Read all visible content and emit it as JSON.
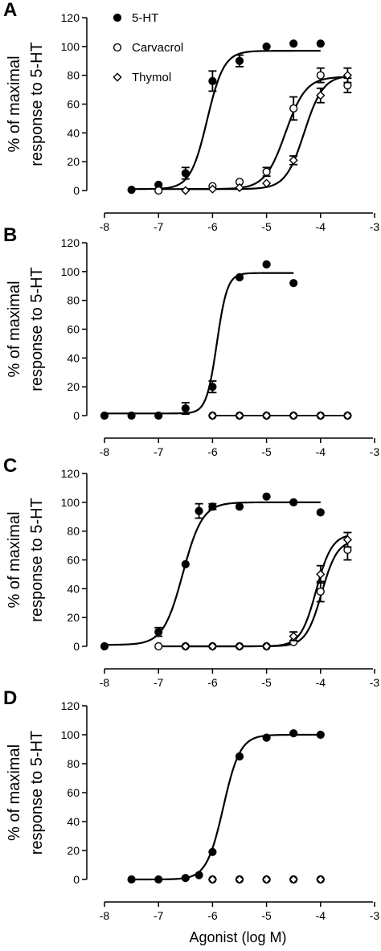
{
  "colors": {
    "ink": "#000000",
    "open_fill": "#ffffff",
    "background": "#ffffff"
  },
  "xlabel": "Agonist (log M)",
  "chart_data": [
    {
      "panel": "A",
      "type": "scatter",
      "ylabel_lines": [
        "% of maximal",
        "response to 5-HT"
      ],
      "xlim": [
        -8,
        -3
      ],
      "ylim": [
        0,
        120
      ],
      "xticks": [
        "-8",
        "-7",
        "-6",
        "-5",
        "-4",
        "-3"
      ],
      "yticks": [
        "0",
        "20",
        "40",
        "60",
        "80",
        "100",
        "120"
      ],
      "legend": {
        "position": "top-left",
        "entries": [
          {
            "label": "5-HT",
            "marker": "filled-circle"
          },
          {
            "label": "Carvacrol",
            "marker": "open-circle"
          },
          {
            "label": "Thymol",
            "marker": "open-diamond"
          }
        ]
      },
      "series": [
        {
          "name": "5-HT",
          "marker": "filled-circle",
          "points": [
            [
              -7.5,
              0.5,
              0
            ],
            [
              -7,
              4,
              0
            ],
            [
              -6.5,
              12,
              4
            ],
            [
              -6,
              76,
              7
            ],
            [
              -5.5,
              90,
              4
            ],
            [
              -5,
              100,
              0
            ],
            [
              -4.5,
              102,
              0
            ],
            [
              -4,
              102,
              0
            ]
          ],
          "fit": {
            "bottom": 1,
            "top": 97,
            "log_ec50": -6.1,
            "hill": 2.8
          }
        },
        {
          "name": "Carvacrol",
          "marker": "open-circle",
          "points": [
            [
              -7,
              0,
              0
            ],
            [
              -6,
              3,
              0
            ],
            [
              -5.5,
              6,
              0
            ],
            [
              -5,
              13,
              3
            ],
            [
              -4.5,
              57,
              8
            ],
            [
              -4,
              80,
              5
            ],
            [
              -3.5,
              73,
              5
            ]
          ],
          "fit": {
            "bottom": 1,
            "top": 79,
            "log_ec50": -4.65,
            "hill": 2.3
          }
        },
        {
          "name": "Thymol",
          "marker": "open-diamond",
          "points": [
            [
              -6.5,
              0,
              0
            ],
            [
              -6,
              1,
              0
            ],
            [
              -5.5,
              2,
              0
            ],
            [
              -5,
              5,
              0
            ],
            [
              -4.5,
              21,
              3
            ],
            [
              -4,
              66,
              5
            ],
            [
              -3.5,
              80,
              5
            ]
          ],
          "fit": {
            "bottom": 1,
            "top": 80,
            "log_ec50": -4.3,
            "hill": 2.5
          }
        }
      ]
    },
    {
      "panel": "B",
      "type": "scatter",
      "ylabel_lines": [
        "% of maximal",
        "response to 5-HT"
      ],
      "xlim": [
        -8,
        -3
      ],
      "ylim": [
        0,
        120
      ],
      "xticks": [
        "-8",
        "-7",
        "-6",
        "-5",
        "-4",
        "-3"
      ],
      "yticks": [
        "0",
        "20",
        "40",
        "60",
        "80",
        "100",
        "120"
      ],
      "series": [
        {
          "name": "5-HT",
          "marker": "filled-circle",
          "points": [
            [
              -8,
              0,
              0
            ],
            [
              -7.5,
              0,
              0
            ],
            [
              -7,
              0,
              0
            ],
            [
              -6.5,
              5,
              4
            ],
            [
              -6,
              20,
              4
            ],
            [
              -5.5,
              96,
              0
            ],
            [
              -5,
              105,
              0
            ],
            [
              -4.5,
              92,
              0
            ]
          ],
          "fit": {
            "bottom": 1.5,
            "top": 99,
            "log_ec50": -5.92,
            "hill": 4.5,
            "x_end": -4.5
          }
        },
        {
          "name": "Carvacrol",
          "marker": "open-circle",
          "points": [
            [
              -6,
              0,
              0
            ],
            [
              -5.5,
              0,
              0
            ],
            [
              -5,
              0,
              0
            ],
            [
              -4.5,
              0,
              0
            ],
            [
              -4,
              0,
              0
            ],
            [
              -3.5,
              0,
              0
            ]
          ]
        },
        {
          "name": "Thymol",
          "marker": "open-diamond",
          "points": [
            [
              -6,
              0,
              0
            ],
            [
              -5.5,
              0,
              0
            ],
            [
              -5,
              0,
              0
            ],
            [
              -4.5,
              0,
              0
            ],
            [
              -4,
              0,
              0
            ],
            [
              -3.5,
              0,
              0
            ]
          ],
          "line": {
            "x_start": -6,
            "x_end": -3.5,
            "y": 0
          }
        }
      ]
    },
    {
      "panel": "C",
      "type": "scatter",
      "ylabel_lines": [
        "% of maximal",
        "response to 5-HT"
      ],
      "xlim": [
        -8,
        -3
      ],
      "ylim": [
        0,
        120
      ],
      "xticks": [
        "-8",
        "-7",
        "-6",
        "-5",
        "-4",
        "-3"
      ],
      "yticks": [
        "0",
        "20",
        "40",
        "60",
        "80",
        "100",
        "120"
      ],
      "series": [
        {
          "name": "5-HT",
          "marker": "filled-circle",
          "points": [
            [
              -8,
              0,
              0
            ],
            [
              -7,
              10,
              3
            ],
            [
              -6.5,
              57,
              0
            ],
            [
              -6.25,
              94,
              5
            ],
            [
              -6,
              97,
              2
            ],
            [
              -5.5,
              97,
              0
            ],
            [
              -5,
              104,
              0
            ],
            [
              -4.5,
              100,
              0
            ],
            [
              -4,
              93,
              0
            ]
          ],
          "fit": {
            "bottom": 1,
            "top": 100,
            "log_ec50": -6.55,
            "hill": 2.4,
            "x_start": -8,
            "x_end": -4
          }
        },
        {
          "name": "Carvacrol",
          "marker": "open-circle",
          "points": [
            [
              -7,
              0,
              0
            ],
            [
              -6.5,
              0,
              0
            ],
            [
              -6,
              0,
              0
            ],
            [
              -5.5,
              0,
              0
            ],
            [
              -5,
              0,
              0
            ],
            [
              -4.5,
              3,
              0
            ],
            [
              -4,
              38,
              7
            ],
            [
              -3.5,
              67,
              7
            ]
          ],
          "fit": {
            "bottom": 0,
            "top": 74,
            "log_ec50": -3.98,
            "hill": 3,
            "x_start": -7,
            "x_end": -3.5
          }
        },
        {
          "name": "Thymol",
          "marker": "open-diamond",
          "points": [
            [
              -6.5,
              0,
              0
            ],
            [
              -6,
              0,
              0
            ],
            [
              -5.5,
              0,
              0
            ],
            [
              -5,
              0,
              0
            ],
            [
              -4.5,
              7,
              3
            ],
            [
              -4,
              50,
              6
            ],
            [
              -3.5,
              74,
              5
            ]
          ],
          "fit": {
            "bottom": 0,
            "top": 78,
            "log_ec50": -4.08,
            "hill": 3,
            "x_start": -6.5,
            "x_end": -3.5
          }
        }
      ]
    },
    {
      "panel": "D",
      "type": "scatter",
      "ylabel_lines": [
        "% of maximal",
        "response to 5-HT"
      ],
      "xlim": [
        -8,
        -3
      ],
      "ylim": [
        0,
        120
      ],
      "xticks": [
        "-8",
        "-7",
        "-6",
        "-5",
        "-4",
        "-3"
      ],
      "yticks": [
        "0",
        "20",
        "40",
        "60",
        "80",
        "100",
        "120"
      ],
      "series": [
        {
          "name": "5-HT",
          "marker": "filled-circle",
          "points": [
            [
              -7.5,
              0,
              0
            ],
            [
              -7,
              0,
              0
            ],
            [
              -6.5,
              1,
              0
            ],
            [
              -6.25,
              3,
              0
            ],
            [
              -6,
              19,
              0
            ],
            [
              -5.5,
              85,
              0
            ],
            [
              -5,
              98,
              0
            ],
            [
              -4.5,
              101,
              0
            ],
            [
              -4,
              100,
              0
            ]
          ],
          "fit": {
            "bottom": 0,
            "top": 100,
            "log_ec50": -5.8,
            "hill": 2.8,
            "x_start": -7.5,
            "x_end": -4
          }
        },
        {
          "name": "Carvacrol",
          "marker": "open-circle",
          "points": [
            [
              -6,
              0,
              0
            ],
            [
              -5.5,
              0,
              0
            ],
            [
              -5,
              0,
              0
            ],
            [
              -4.5,
              0,
              0
            ],
            [
              -4,
              0,
              0
            ]
          ]
        },
        {
          "name": "Thymol",
          "marker": "open-diamond",
          "points": [
            [
              -6,
              0,
              0
            ],
            [
              -5.5,
              0,
              0
            ],
            [
              -5,
              0,
              0
            ],
            [
              -4.5,
              0,
              0
            ],
            [
              -4,
              0,
              0
            ]
          ]
        }
      ]
    }
  ]
}
